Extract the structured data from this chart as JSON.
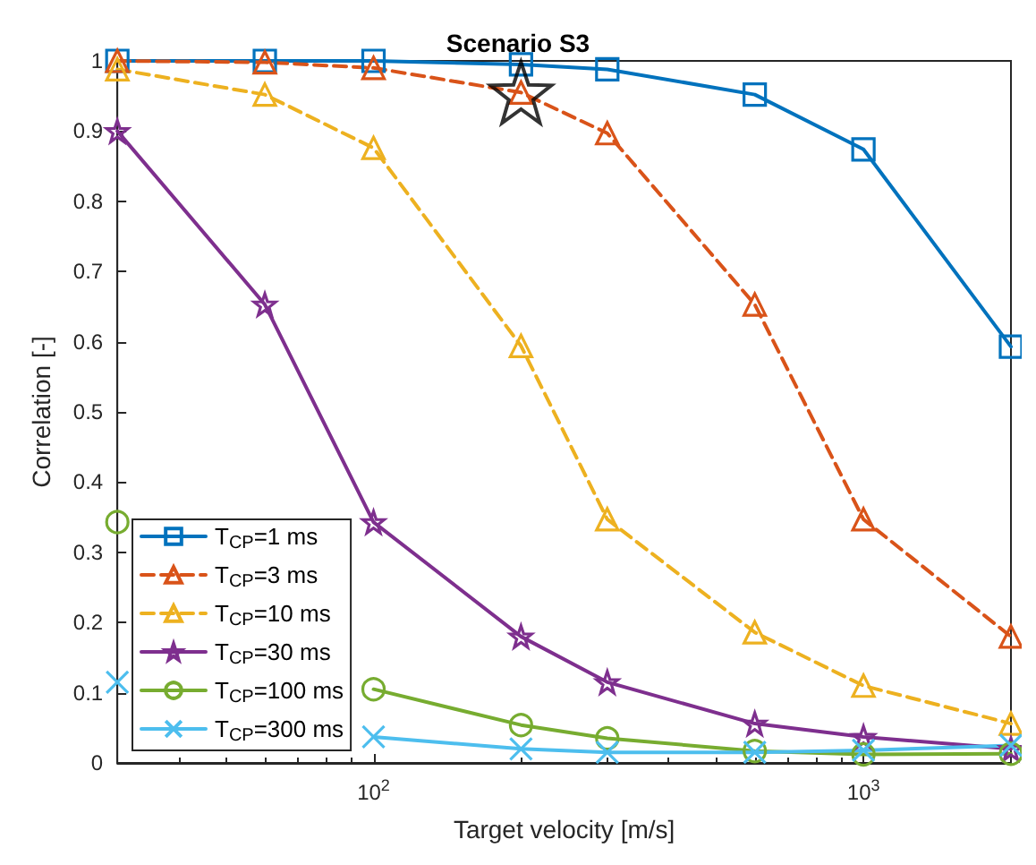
{
  "chart_data": {
    "type": "line",
    "title": "Scenario S3",
    "xlabel": "Target velocity [m/s]",
    "ylabel": "Correlation [-]",
    "log": "x",
    "xlim": [
      30,
      2000
    ],
    "ylim": [
      0,
      1
    ],
    "xticks": [
      {
        "value": 100,
        "label": "10$^{2}$"
      },
      {
        "value": 1000,
        "label": "10$^{3}$"
      }
    ],
    "yticks": [
      0,
      0.1,
      0.2,
      0.3,
      0.4,
      0.5,
      0.6,
      0.7,
      0.8,
      0.9,
      1
    ],
    "grid": false,
    "legend": "bottom left",
    "x": [
      30,
      60,
      100,
      200,
      300,
      600,
      1000,
      2000
    ],
    "series": [
      {
        "name": "T$_{CP}$=1 ms",
        "color": "#0072bd",
        "marker": "square",
        "line_style": "solid",
        "values": [
          1.0,
          1.0,
          1.0,
          0.995,
          0.988,
          0.952,
          0.874,
          0.593
        ]
      },
      {
        "name": "T$_{CP}$=3 ms",
        "color": "#d95319",
        "marker": "triangle",
        "line_style": "dashed",
        "values": [
          1.0,
          0.998,
          0.99,
          0.955,
          0.897,
          0.653,
          0.347,
          0.18
        ]
      },
      {
        "name": "T$_{CP}$=10 ms",
        "color": "#edb120",
        "marker": "triangle",
        "line_style": "dashed",
        "values": [
          0.988,
          0.952,
          0.876,
          0.594,
          0.347,
          0.186,
          0.11,
          0.056
        ]
      },
      {
        "name": "T$_{CP}$=30 ms",
        "color": "#7e2f8e",
        "marker": "star",
        "line_style": "solid",
        "values": [
          0.9,
          0.653,
          0.343,
          0.18,
          0.115,
          0.056,
          0.037,
          0.02
        ]
      },
      {
        "name": "T$_{CP}$=100 ms",
        "color": "#77ac30",
        "marker": "circle",
        "line_style": "solid",
        "values": [
          0.343,
          null,
          0.105,
          0.054,
          0.035,
          0.017,
          0.012,
          0.013
        ]
      },
      {
        "name": "T$_{CP}$=300 ms",
        "color": "#4dbeee",
        "marker": "cross",
        "line_style": "solid",
        "values": [
          0.115,
          null,
          0.037,
          0.02,
          0.015,
          0.015,
          0.018,
          0.025
        ]
      },
      {
        "type": "scatter",
        "color": "#000000",
        "marker": "star",
        "x": [
          200
        ],
        "values": [
          0.955
        ]
      }
    ]
  }
}
